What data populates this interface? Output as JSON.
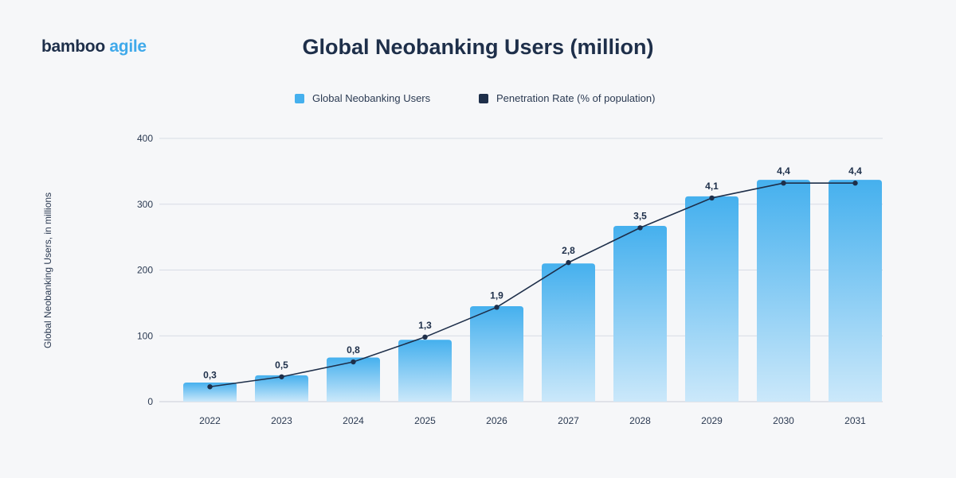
{
  "logo": {
    "word1": "bamboo",
    "word2": "agile"
  },
  "chart_data": {
    "type": "bar",
    "title": "Global Neobanking Users (million)",
    "ylabel": "Global Neobanking Users, in millions",
    "xlabel": "",
    "ylim": [
      0,
      400
    ],
    "yticks": [
      0,
      100,
      200,
      300,
      400
    ],
    "grid": true,
    "legend_position": "top-center",
    "categories": [
      "2022",
      "2023",
      "2024",
      "2025",
      "2026",
      "2027",
      "2028",
      "2029",
      "2030",
      "2031"
    ],
    "series": [
      {
        "name": "Global Neobanking Users",
        "type": "bar",
        "color": "#45b0ee",
        "values": [
          29,
          40,
          67,
          94,
          145,
          210,
          267,
          312,
          337,
          337
        ]
      },
      {
        "name": "Penetration Rate (% of population)",
        "type": "line",
        "color": "#1e2f4a",
        "values": [
          0.3,
          0.5,
          0.8,
          1.3,
          1.9,
          2.8,
          3.5,
          4.1,
          4.4,
          4.4
        ],
        "labels": [
          "0,3",
          "0,5",
          "0,8",
          "1,3",
          "1,9",
          "2,8",
          "3,5",
          "4,1",
          "4,4",
          "4,4"
        ]
      }
    ]
  }
}
